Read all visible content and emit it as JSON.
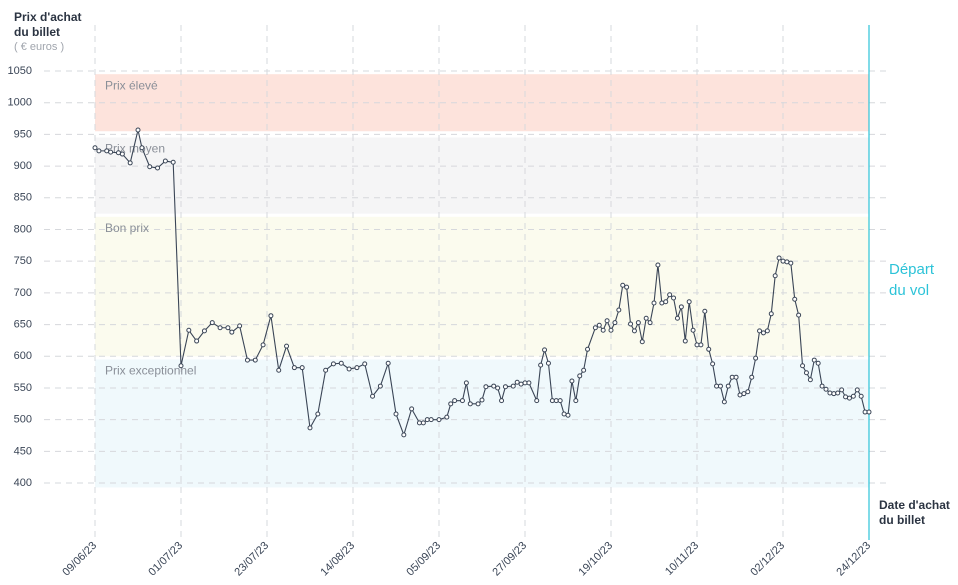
{
  "chart_data": {
    "type": "line",
    "y_label": [
      "Prix d'achat",
      "du billet"
    ],
    "y_unit": "( € euros )",
    "x_label": [
      "Date d'achat",
      "du billet"
    ],
    "departure": {
      "x": "24/12/23",
      "label": [
        "Départ",
        "du vol"
      ],
      "color": "#2cc3d8"
    },
    "bands": [
      {
        "name": "Prix élevé",
        "from": 955,
        "to": 1045,
        "color": "#fde3dc"
      },
      {
        "name": "Prix moyen",
        "from": 825,
        "to": 945,
        "color": "#f5f5f6"
      },
      {
        "name": "Bon prix",
        "from": 600,
        "to": 820,
        "color": "#fbfbee"
      },
      {
        "name": "Prix exceptionnel",
        "from": 393,
        "to": 595,
        "color": "#f0f9fc"
      }
    ],
    "xlim": [
      "09/06/23",
      "24/12/23"
    ],
    "xticks": [
      "09/06/23",
      "01/07/23",
      "23/07/23",
      "14/08/23",
      "05/09/23",
      "27/09/23",
      "19/10/23",
      "10/11/23",
      "02/12/23",
      "24/12/23"
    ],
    "ylim": [
      393,
      1050
    ],
    "yticks": [
      400,
      450,
      500,
      550,
      600,
      650,
      700,
      750,
      800,
      850,
      900,
      950,
      1000,
      1050
    ],
    "grid": true,
    "x": [
      "09/06/23",
      "10/06/23",
      "12/06/23",
      "13/06/23",
      "15/06/23",
      "16/06/23",
      "18/06/23",
      "20/06/23",
      "21/06/23",
      "23/06/23",
      "25/06/23",
      "27/06/23",
      "29/06/23",
      "01/07/23",
      "03/07/23",
      "05/07/23",
      "07/07/23",
      "09/07/23",
      "11/07/23",
      "13/07/23",
      "14/07/23",
      "16/07/23",
      "18/07/23",
      "20/07/23",
      "22/07/23",
      "24/07/23",
      "26/07/23",
      "28/07/23",
      "30/07/23",
      "01/08/23",
      "03/08/23",
      "05/08/23",
      "07/08/23",
      "09/08/23",
      "11/08/23",
      "13/08/23",
      "15/08/23",
      "17/08/23",
      "19/08/23",
      "21/08/23",
      "23/08/23",
      "25/08/23",
      "27/08/23",
      "29/08/23",
      "31/08/23",
      "01/09/23",
      "02/09/23",
      "03/09/23",
      "05/09/23",
      "07/09/23",
      "08/09/23",
      "09/09/23",
      "11/09/23",
      "12/09/23",
      "13/09/23",
      "15/09/23",
      "16/09/23",
      "17/09/23",
      "19/09/23",
      "20/09/23",
      "21/09/23",
      "22/09/23",
      "24/09/23",
      "25/09/23",
      "26/09/23",
      "27/09/23",
      "28/09/23",
      "30/09/23",
      "01/10/23",
      "02/10/23",
      "03/10/23",
      "04/10/23",
      "05/10/23",
      "06/10/23",
      "07/10/23",
      "08/10/23",
      "09/10/23",
      "10/10/23",
      "11/10/23",
      "12/10/23",
      "13/10/23",
      "15/10/23",
      "16/10/23",
      "17/10/23",
      "18/10/23",
      "19/10/23",
      "20/10/23",
      "21/10/23",
      "22/10/23",
      "23/10/23",
      "24/10/23",
      "25/10/23",
      "26/10/23",
      "27/10/23",
      "28/10/23",
      "29/10/23",
      "30/10/23",
      "31/10/23",
      "01/11/23",
      "02/11/23",
      "03/11/23",
      "04/11/23",
      "05/11/23",
      "06/11/23",
      "07/11/23",
      "08/11/23",
      "09/11/23",
      "10/11/23",
      "11/11/23",
      "12/11/23",
      "13/11/23",
      "14/11/23",
      "15/11/23",
      "16/11/23",
      "17/11/23",
      "18/11/23",
      "19/11/23",
      "20/11/23",
      "21/11/23",
      "22/11/23",
      "23/11/23",
      "24/11/23",
      "25/11/23",
      "26/11/23",
      "27/11/23",
      "28/11/23",
      "29/11/23",
      "30/11/23",
      "01/12/23",
      "02/12/23",
      "03/12/23",
      "04/12/23",
      "05/12/23",
      "06/12/23",
      "07/12/23",
      "08/12/23",
      "09/12/23",
      "10/12/23",
      "11/12/23",
      "12/12/23",
      "13/12/23",
      "14/12/23",
      "15/12/23",
      "16/12/23",
      "17/12/23",
      "18/12/23",
      "19/12/23",
      "20/12/23",
      "21/12/23",
      "22/12/23",
      "23/12/23",
      "24/12/23"
    ],
    "series": [
      {
        "color": "#3a4556",
        "values": [
          929,
          924,
          924,
          922,
          921,
          919,
          905,
          957,
          929,
          899,
          897,
          908,
          906,
          585,
          641,
          624,
          640,
          653,
          645,
          645,
          638,
          648,
          594,
          594,
          618,
          664,
          578,
          616,
          582,
          582,
          487,
          509,
          578,
          588,
          589,
          580,
          582,
          588,
          537,
          553,
          589,
          509,
          476,
          517,
          495,
          495,
          500,
          500,
          500,
          504,
          525,
          530,
          530,
          558,
          525,
          525,
          531,
          552,
          553,
          550,
          530,
          552,
          553,
          559,
          556,
          558,
          558,
          530,
          586,
          610,
          589,
          530,
          530,
          530,
          509,
          507,
          561,
          530,
          569,
          578,
          611,
          645,
          649,
          641,
          656,
          641,
          653,
          673,
          712,
          709,
          651,
          640,
          653,
          623,
          660,
          653,
          684,
          744,
          684,
          686,
          697,
          692,
          660,
          678,
          624,
          686,
          641,
          618,
          618,
          671,
          611,
          588,
          553,
          553,
          528,
          553,
          567,
          567,
          539,
          541,
          544,
          567,
          597,
          640,
          637,
          640,
          667,
          727,
          755,
          750,
          749,
          747,
          690,
          665,
          585,
          574,
          563,
          594,
          589,
          553,
          548,
          542,
          541,
          542,
          547,
          536,
          534,
          537,
          547,
          537,
          512,
          512
        ]
      }
    ]
  }
}
